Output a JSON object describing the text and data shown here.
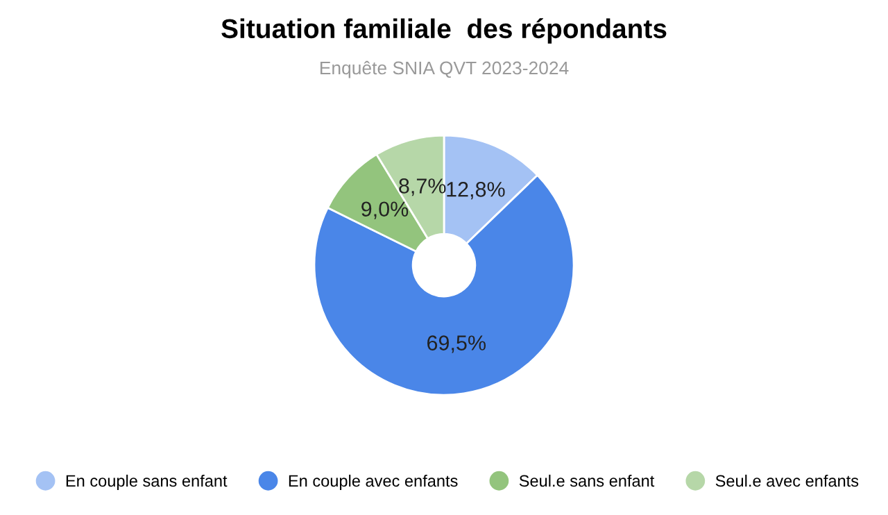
{
  "chart_data": {
    "type": "donut",
    "title": "Situation familiale  des répondants",
    "subtitle": "Enquête SNIA QVT 2023-2024",
    "categories": [
      "En couple sans enfant",
      "En couple avec enfants",
      "Seul.e sans enfant",
      "Seul.e avec enfants"
    ],
    "values": [
      12.8,
      69.5,
      9.0,
      8.7
    ],
    "value_labels": [
      "12,8%",
      "69,5%",
      "9,0%",
      "8,7%"
    ],
    "colors": [
      "#a4c2f4",
      "#4a86e8",
      "#93c47d",
      "#b6d7a8"
    ],
    "legend": "bottom"
  }
}
